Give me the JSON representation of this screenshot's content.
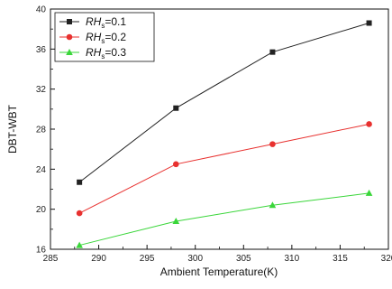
{
  "chart_data": {
    "type": "line",
    "xlabel": "Ambient Temperature(K)",
    "ylabel": "DBT-WBT",
    "xlim": [
      285,
      320
    ],
    "ylim": [
      16,
      40
    ],
    "x_ticks": [
      285,
      290,
      295,
      300,
      305,
      310,
      315,
      320
    ],
    "y_ticks": [
      16,
      20,
      24,
      28,
      32,
      36,
      40
    ],
    "x_tick_labels": [
      "285",
      "290",
      "295",
      "300",
      "305",
      "310",
      "315",
      "320"
    ],
    "y_tick_labels": [
      "16",
      "20",
      "24",
      "28",
      "32",
      "36",
      "40"
    ],
    "legend_position": "top-left",
    "grid": false,
    "series": [
      {
        "name_main": "RH",
        "name_sub": "s",
        "name_value": "=0.1",
        "color": "#222222",
        "marker": "square",
        "x": [
          288,
          298,
          308,
          318
        ],
        "y": [
          22.7,
          30.1,
          35.7,
          38.6
        ]
      },
      {
        "name_main": "RH",
        "name_sub": "s",
        "name_value": "=0.2",
        "color": "#e8312f",
        "marker": "circle",
        "x": [
          288,
          298,
          308,
          318
        ],
        "y": [
          19.6,
          24.5,
          26.5,
          28.5
        ]
      },
      {
        "name_main": "RH",
        "name_sub": "s",
        "name_value": "=0.3",
        "color": "#3ad63a",
        "marker": "triangle",
        "x": [
          288,
          298,
          308,
          318
        ],
        "y": [
          16.4,
          18.8,
          20.4,
          21.6
        ]
      }
    ]
  }
}
